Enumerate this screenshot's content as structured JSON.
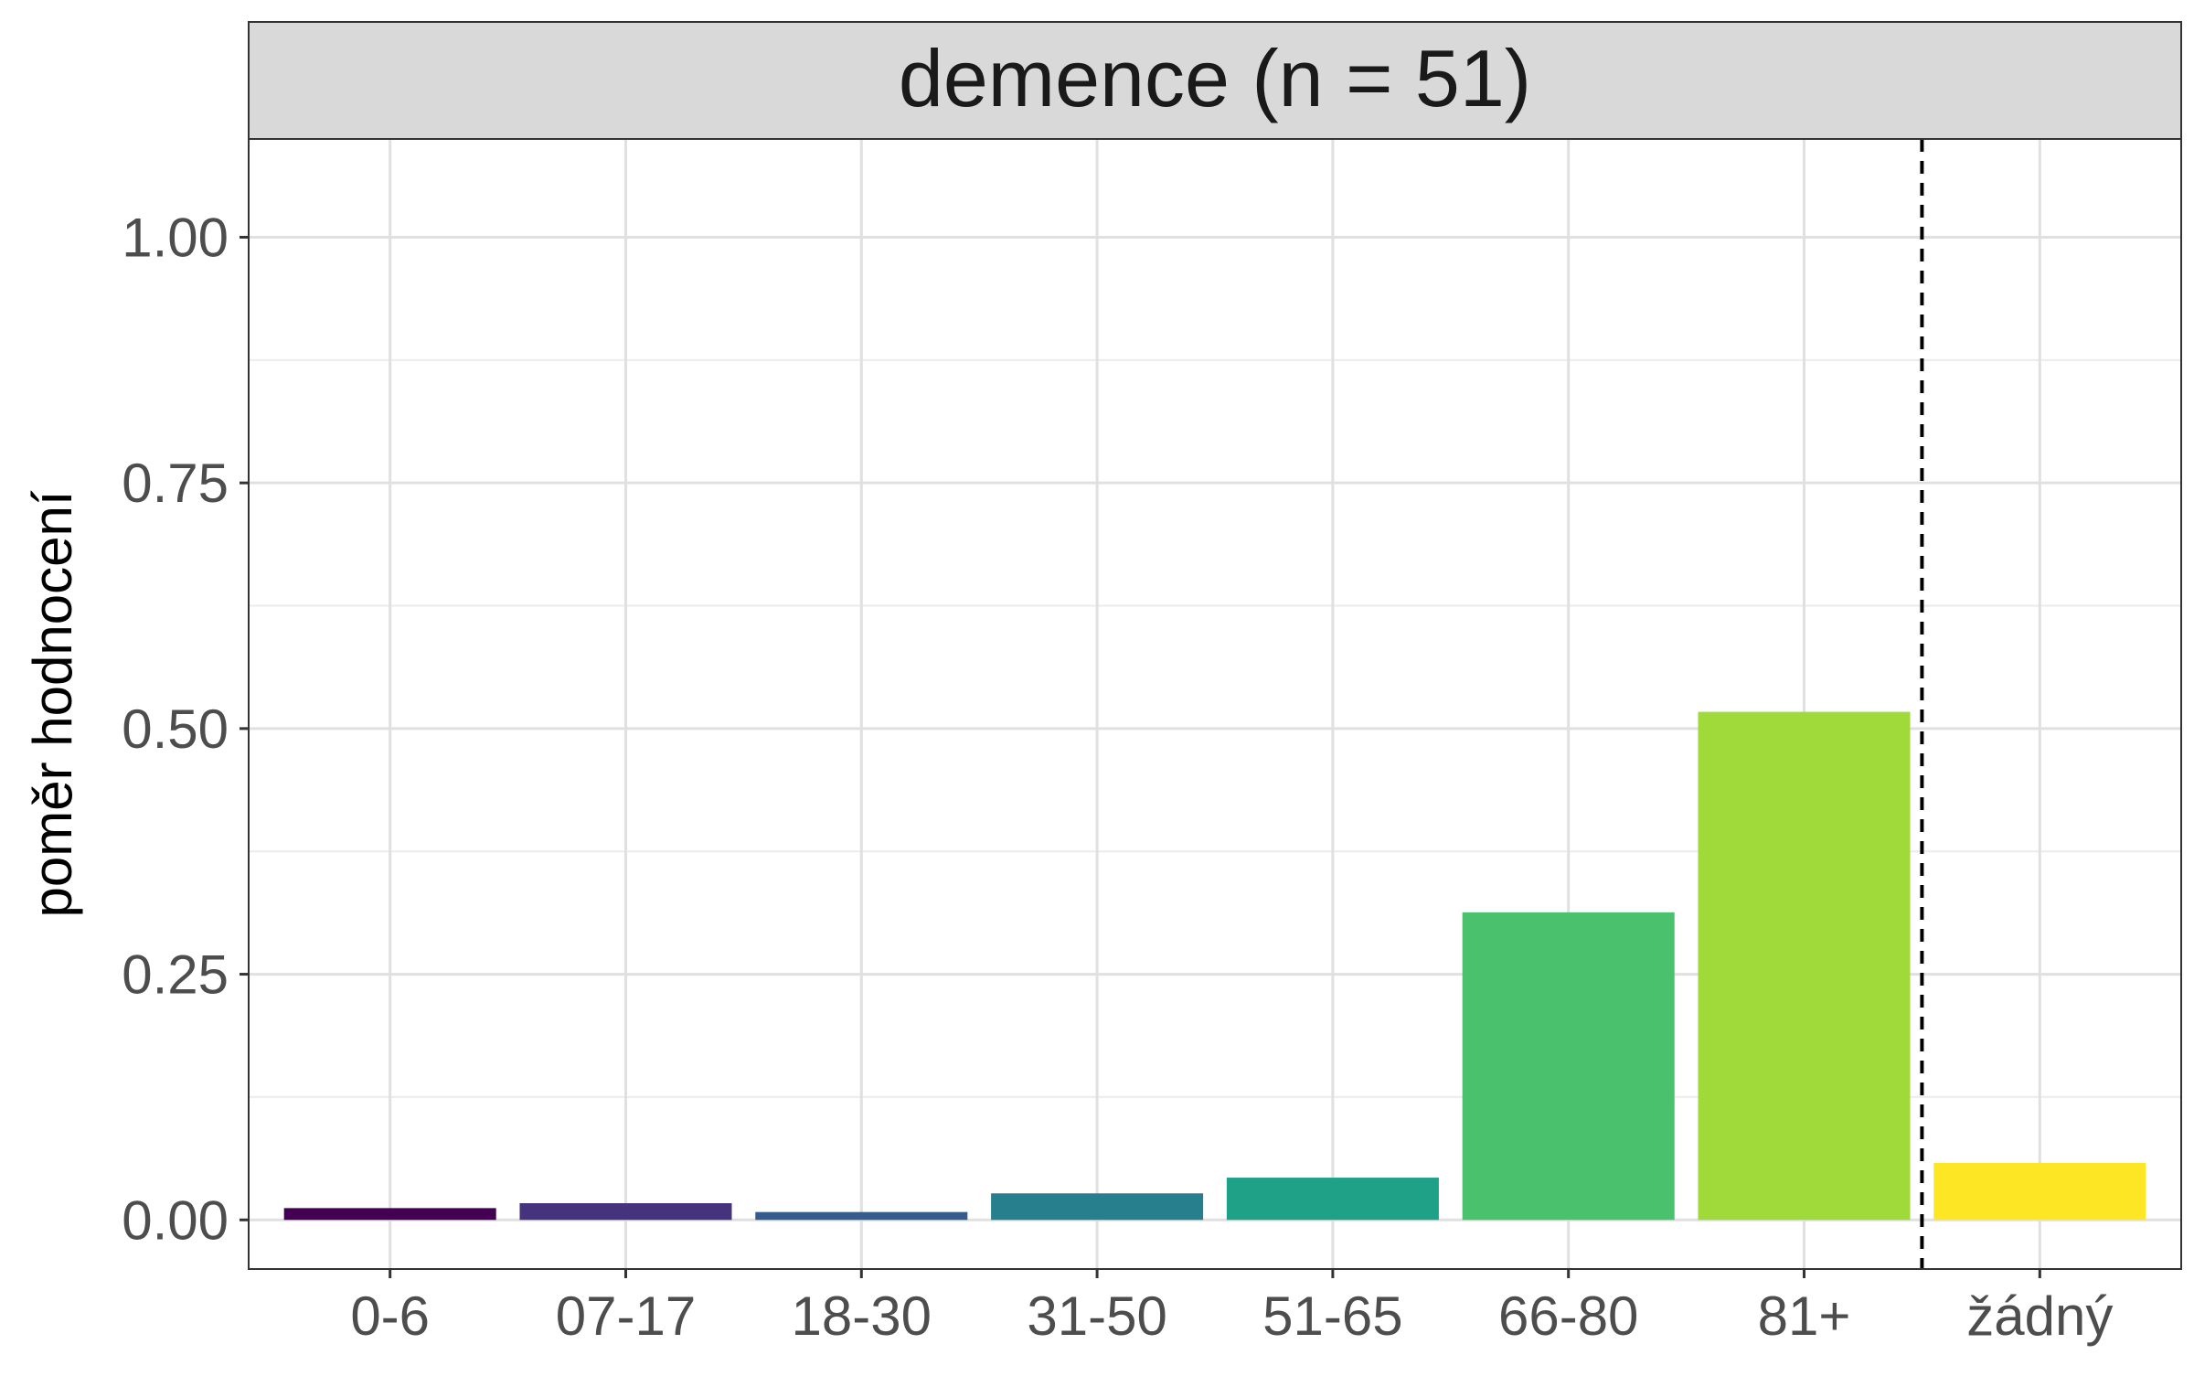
{
  "chart_data": {
    "type": "bar",
    "facet_title": "demence (n = 51)",
    "ylabel": "poměr hodnocení",
    "xlabel": "",
    "categories": [
      "0-6",
      "07-17",
      "18-30",
      "31-50",
      "51-65",
      "66-80",
      "81+",
      "žádný"
    ],
    "values": [
      0.012,
      0.017,
      0.008,
      0.027,
      0.043,
      0.313,
      0.517,
      0.058
    ],
    "colors": [
      "#440154",
      "#46337E",
      "#365C8D",
      "#277F8E",
      "#1FA187",
      "#4AC16D",
      "#9FDA3A",
      "#FDE725"
    ],
    "ylim": [
      -0.05,
      1.1
    ],
    "yticks": [
      0.0,
      0.25,
      0.5,
      0.75,
      1.0
    ],
    "ytick_labels": [
      "0.00",
      "0.25",
      "0.50",
      "0.75",
      "1.00"
    ],
    "separator_after_category": "81+",
    "grid": true
  }
}
